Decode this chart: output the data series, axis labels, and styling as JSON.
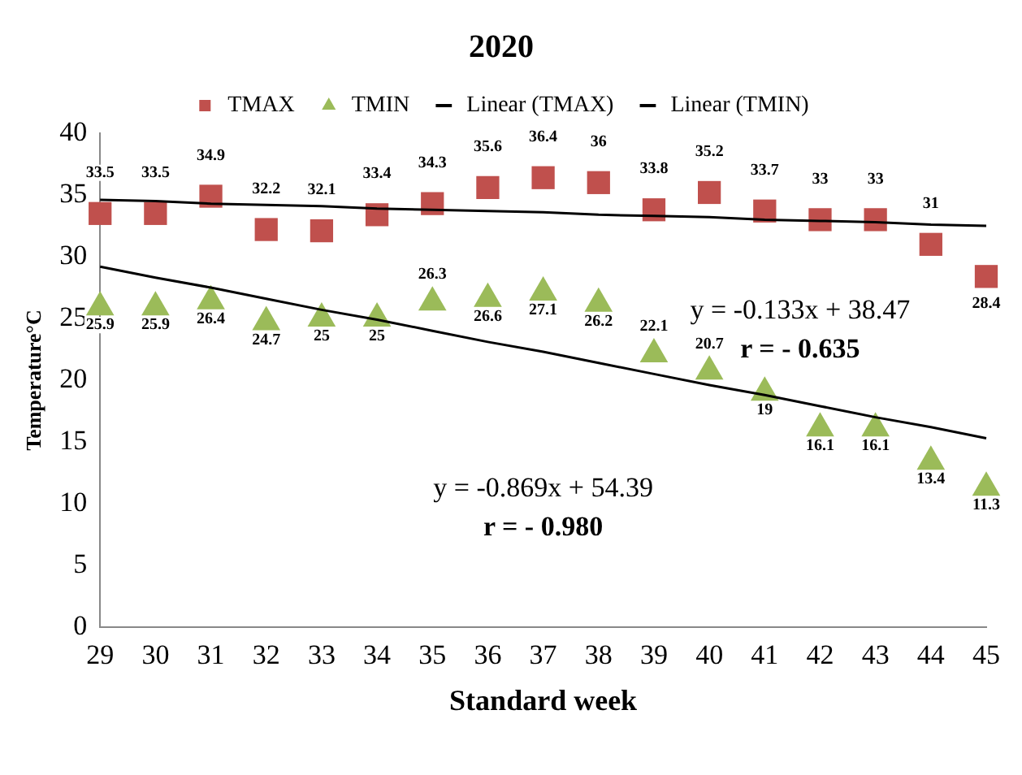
{
  "chart_data": {
    "type": "scatter",
    "title": "2020",
    "xlabel": "Standard week",
    "ylabel": "Temperature°C",
    "x": [
      29,
      30,
      31,
      32,
      33,
      34,
      35,
      36,
      37,
      38,
      39,
      40,
      41,
      42,
      43,
      44,
      45
    ],
    "series": [
      {
        "name": "TMAX",
        "color": "#c0504d",
        "marker": "square",
        "values": [
          33.5,
          33.5,
          34.9,
          32.2,
          32.1,
          33.4,
          34.3,
          35.6,
          36.4,
          36,
          33.8,
          35.2,
          33.7,
          33,
          33,
          31,
          28.4
        ],
        "value_labels": [
          "33.5",
          "33.5",
          "34.9",
          "32.2",
          "32.1",
          "33.4",
          "34.3",
          "35.6",
          "36.4",
          "36",
          "33.8",
          "35.2",
          "33.7",
          "33",
          "33",
          "31",
          "28.4"
        ]
      },
      {
        "name": "TMIN",
        "color": "#9bbb59",
        "marker": "triangle",
        "values": [
          25.9,
          25.9,
          26.4,
          24.7,
          25,
          25,
          26.3,
          26.6,
          27.1,
          26.2,
          22.1,
          20.7,
          19,
          16.1,
          16.1,
          13.4,
          11.3
        ],
        "value_labels": [
          "25.9",
          "25.9",
          "26.4",
          "24.7",
          "25",
          "25",
          "26.3",
          "26.6",
          "27.1",
          "26.2",
          "22.1",
          "20.7",
          "19",
          "16.1",
          "16.1",
          "13.4",
          "11.3"
        ]
      },
      {
        "name": "Linear (TMAX)",
        "type": "line",
        "color": "#000000",
        "marker": "none",
        "values": [
          34.6,
          34.5,
          34.3,
          34.2,
          34.1,
          33.9,
          33.8,
          33.7,
          33.6,
          33.4,
          33.3,
          33.2,
          33.0,
          32.9,
          32.8,
          32.6,
          32.5
        ]
      },
      {
        "name": "Linear (TMIN)",
        "type": "line",
        "color": "#000000",
        "marker": "none",
        "values": [
          29.2,
          28.3,
          27.5,
          26.6,
          25.7,
          24.9,
          24.0,
          23.1,
          22.3,
          21.4,
          20.5,
          19.6,
          18.8,
          17.9,
          17.0,
          16.2,
          15.3
        ]
      }
    ],
    "annotations": [
      "y = -0.133x + 38.47",
      "r = - 0.635",
      "y = -0.869x + 54.39",
      "r = - 0.980"
    ],
    "xlim": [
      29,
      45
    ],
    "xticks": [
      29,
      30,
      31,
      32,
      33,
      34,
      35,
      36,
      37,
      38,
      39,
      40,
      41,
      42,
      43,
      44,
      45
    ],
    "ylim": [
      0,
      40
    ],
    "yticks": [
      0,
      5,
      10,
      15,
      20,
      25,
      30,
      35,
      40
    ],
    "grid": false,
    "legend": "top"
  }
}
